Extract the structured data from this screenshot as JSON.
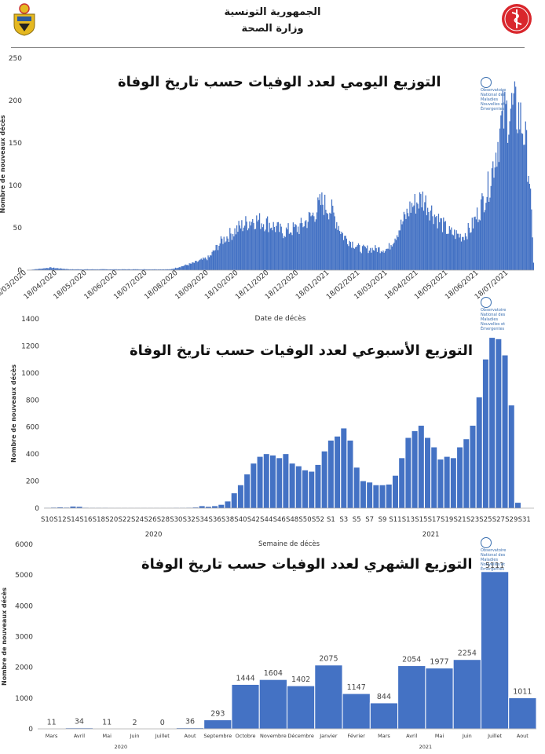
{
  "header": {
    "line1": "الجمهورية التونسية",
    "line2": "وزارة الصحة"
  },
  "colors": {
    "bar": "#4472c4",
    "text": "#222222",
    "logo_red": "#d9262c",
    "emblem_gold": "#e5b820"
  },
  "icons": {
    "left": "tunisia-coat-of-arms-icon",
    "right": "ministry-of-health-logo-icon",
    "onmne": "onmne-logo-icon"
  },
  "onmne_text": "Observatoire National des Maladies Nouvelles et Émergentes",
  "chart_data": [
    {
      "type": "bar",
      "title": "التوزيع اليومي لعدد الوفيات حسب تاريخ الوفاة",
      "xlabel": "Date de décès",
      "ylabel": "Nombre de nouveaux décès",
      "ylim": [
        0,
        250
      ],
      "yticks": [
        0,
        50,
        100,
        150,
        200,
        250
      ],
      "xticks": [
        "18/03/2020",
        "18/04/2020",
        "18/05/2020",
        "18/06/2020",
        "18/07/2020",
        "18/08/2020",
        "18/09/2020",
        "18/10/2020",
        "18/11/2020",
        "18/12/2020",
        "18/01/2021",
        "18/02/2021",
        "18/03/2021",
        "18/04/2021",
        "18/05/2021",
        "18/06/2021",
        "18/07/2021"
      ],
      "profile_date": [
        "2020-03-18",
        "2020-04-10",
        "2020-05-01",
        "2020-08-10",
        "2020-09-01",
        "2020-09-18",
        "2020-10-01",
        "2020-10-18",
        "2020-11-01",
        "2020-11-18",
        "2020-12-01",
        "2020-12-18",
        "2021-01-01",
        "2021-01-10",
        "2021-01-20",
        "2021-02-01",
        "2021-02-18",
        "2021-03-01",
        "2021-03-18",
        "2021-04-01",
        "2021-04-10",
        "2021-04-22",
        "2021-05-01",
        "2021-05-18",
        "2021-06-01",
        "2021-06-10",
        "2021-06-18",
        "2021-06-28",
        "2021-07-05",
        "2021-07-12",
        "2021-07-20",
        "2021-07-28",
        "2021-08-03",
        "2021-08-08",
        "2021-08-12"
      ],
      "profile_value": [
        0,
        3,
        1,
        1,
        8,
        15,
        35,
        50,
        60,
        55,
        45,
        50,
        65,
        80,
        70,
        40,
        25,
        25,
        25,
        55,
        75,
        85,
        70,
        45,
        40,
        50,
        70,
        100,
        140,
        180,
        190,
        185,
        160,
        110,
        10
      ]
    },
    {
      "type": "bar",
      "title": "التوزيع الأسبوعي لعدد الوفيات حسب تاريخ الوفاة",
      "xlabel": "Semaine de décès",
      "ylabel": "Nombre de nouveaux décès",
      "ylim": [
        0,
        1400
      ],
      "yticks": [
        0,
        200,
        400,
        600,
        800,
        1000,
        1200,
        1400
      ],
      "year_labels": [
        "2020",
        "2021"
      ],
      "categories": [
        "S10",
        "S11",
        "S12",
        "S13",
        "S14",
        "S15",
        "S16",
        "S17",
        "S18",
        "S19",
        "S20",
        "S21",
        "S22",
        "S23",
        "S24",
        "S25",
        "S26",
        "S27",
        "S28",
        "S29",
        "S30",
        "S31",
        "S32",
        "S33",
        "S34",
        "S35",
        "S36",
        "S37",
        "S38",
        "S39",
        "S40",
        "S41",
        "S42",
        "S43",
        "S44",
        "S45",
        "S46",
        "S47",
        "S48",
        "S49",
        "S50",
        "S51",
        "S52",
        "S53",
        "S1",
        "S2",
        "S3",
        "S4",
        "S5",
        "S6",
        "S7",
        "S8",
        "S9",
        "S10",
        "S11",
        "S12",
        "S13",
        "S14",
        "S15",
        "S16",
        "S17",
        "S18",
        "S19",
        "S20",
        "S21",
        "S22",
        "S23",
        "S24",
        "S25",
        "S26",
        "S27",
        "S28",
        "S29",
        "S30",
        "S31",
        "S32"
      ],
      "tick_labels": [
        "S10",
        "S12",
        "S14",
        "S16",
        "S18",
        "S20",
        "S22",
        "S24",
        "S26",
        "S28",
        "S30",
        "S32",
        "S34",
        "S36",
        "S38",
        "S40",
        "S42",
        "S44",
        "S46",
        "S48",
        "S50",
        "S52",
        "S1",
        "S3",
        "S5",
        "S7",
        "S9",
        "S11",
        "S13",
        "S15",
        "S17",
        "S19",
        "S21",
        "S23",
        "S25",
        "S27",
        "S29",
        "S31"
      ],
      "values": [
        2,
        4,
        6,
        4,
        12,
        10,
        3,
        2,
        2,
        2,
        1,
        1,
        1,
        1,
        1,
        1,
        1,
        1,
        1,
        1,
        2,
        2,
        3,
        5,
        15,
        10,
        15,
        25,
        50,
        110,
        170,
        250,
        330,
        380,
        400,
        390,
        370,
        400,
        330,
        310,
        280,
        270,
        320,
        420,
        500,
        530,
        590,
        500,
        300,
        200,
        190,
        170,
        170,
        175,
        240,
        370,
        520,
        570,
        610,
        520,
        450,
        360,
        380,
        370,
        450,
        510,
        610,
        820,
        1100,
        1260,
        1250,
        1130,
        760,
        40,
        0,
        0
      ]
    },
    {
      "type": "bar",
      "title": "التوزيع الشهري لعدد الوفيات حسب تاريخ الوفاة",
      "xlabel": "",
      "ylabel": "Nombre de nouveaux décès",
      "ylim": [
        0,
        6000
      ],
      "yticks": [
        0,
        1000,
        2000,
        3000,
        4000,
        5000,
        6000
      ],
      "year_labels": [
        "2020",
        "2021"
      ],
      "categories": [
        "Mars",
        "Avril",
        "Mai",
        "Juin",
        "Juillet",
        "Aout",
        "Septembre",
        "Octobre",
        "Novembre",
        "Décembre",
        "Janvier",
        "Février",
        "Mars",
        "Avril",
        "Mai",
        "Juin",
        "Juillet",
        "Aout"
      ],
      "values": [
        11,
        34,
        11,
        2,
        0,
        36,
        293,
        1444,
        1604,
        1402,
        2075,
        1147,
        844,
        2054,
        1977,
        2254,
        5111,
        1011
      ],
      "value_labels": [
        "11",
        "34",
        "11",
        "2",
        "0",
        "36",
        "293",
        "1444",
        "1604",
        "1402",
        "2075",
        "1147",
        "844",
        "2054",
        "1977",
        "2254",
        "5111",
        "1011"
      ]
    }
  ]
}
